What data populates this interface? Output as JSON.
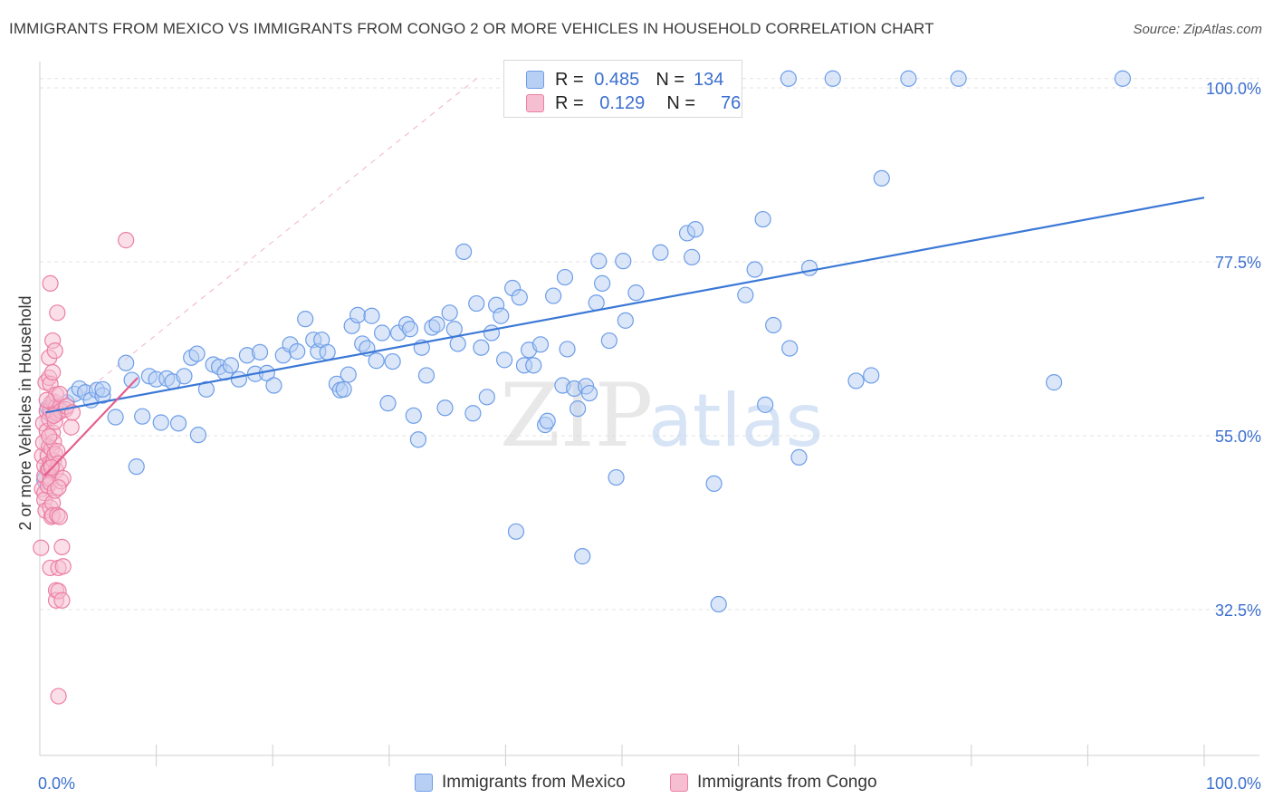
{
  "header": {
    "title": "IMMIGRANTS FROM MEXICO VS IMMIGRANTS FROM CONGO 2 OR MORE VEHICLES IN HOUSEHOLD CORRELATION CHART",
    "source_label": "Source: ZipAtlas.com"
  },
  "colors": {
    "blue": "#6d9de8",
    "blue_fill": "#b7cff3",
    "blue_line": "#3b78d6",
    "pink": "#ec7fa4",
    "pink_fill": "#f6bfd1",
    "pink_line": "#e45e8e",
    "accent_text": "#3b6fcf"
  },
  "legend": {
    "row1": {
      "r_label": "R =",
      "r_value": "0.485",
      "n_label": "N =",
      "n_value": "134"
    },
    "row2": {
      "r_label": "R =",
      "r_value": "0.129",
      "n_label": "N =",
      "n_value": "76"
    }
  },
  "bottom_legend": {
    "mexico": "Immigrants from Mexico",
    "congo": "Immigrants from Congo"
  },
  "watermark": {
    "zip": "ZIP",
    "atlas": "atlas"
  },
  "chart_data": {
    "type": "scatter",
    "title": "IMMIGRANTS FROM MEXICO VS IMMIGRANTS FROM CONGO 2 OR MORE VEHICLES IN HOUSEHOLD CORRELATION CHART",
    "xlabel": "",
    "ylabel": "2 or more Vehicles in Household",
    "xlim": [
      0,
      100
    ],
    "ylim": [
      15,
      102
    ],
    "x_tick_labels": [
      "0.0%",
      "100.0%"
    ],
    "y_ticks": [
      32.5,
      55.0,
      77.5,
      100.0
    ],
    "y_tick_labels": [
      "32.5%",
      "55.0%",
      "77.5%",
      "100.0%"
    ],
    "grid": true,
    "legend_position": "top-center",
    "series": [
      {
        "name": "Immigrants from Mexico",
        "R": 0.485,
        "N": 134,
        "trend": {
          "x": [
            0.5,
            100
          ],
          "y": [
            58.0,
            85.8
          ]
        },
        "points": [
          [
            0.6,
            49.3
          ],
          [
            0.7,
            58.6
          ],
          [
            0.9,
            57.8
          ],
          [
            1.2,
            58.5
          ],
          [
            1.4,
            58.2
          ],
          [
            1.6,
            58.8
          ],
          [
            2.3,
            59.3
          ],
          [
            3.0,
            60.4
          ],
          [
            3.4,
            61.1
          ],
          [
            3.9,
            60.6
          ],
          [
            4.4,
            59.6
          ],
          [
            4.9,
            60.9
          ],
          [
            5.4,
            60.2
          ],
          [
            5.4,
            61.0
          ],
          [
            6.5,
            57.4
          ],
          [
            7.4,
            64.4
          ],
          [
            7.9,
            62.2
          ],
          [
            8.3,
            51.0
          ],
          [
            8.8,
            57.5
          ],
          [
            9.4,
            62.7
          ],
          [
            10.0,
            62.3
          ],
          [
            10.4,
            56.7
          ],
          [
            10.9,
            62.4
          ],
          [
            11.4,
            62.0
          ],
          [
            11.9,
            56.6
          ],
          [
            12.4,
            62.7
          ],
          [
            13.0,
            65.1
          ],
          [
            13.5,
            65.6
          ],
          [
            13.6,
            55.1
          ],
          [
            14.3,
            61.0
          ],
          [
            14.9,
            64.2
          ],
          [
            15.4,
            63.9
          ],
          [
            15.9,
            63.2
          ],
          [
            16.4,
            64.1
          ],
          [
            17.1,
            62.3
          ],
          [
            17.8,
            65.4
          ],
          [
            18.5,
            63.0
          ],
          [
            18.9,
            65.8
          ],
          [
            19.5,
            63.1
          ],
          [
            20.1,
            61.5
          ],
          [
            20.9,
            65.4
          ],
          [
            21.5,
            66.8
          ],
          [
            22.1,
            65.9
          ],
          [
            22.8,
            70.1
          ],
          [
            23.5,
            67.4
          ],
          [
            23.9,
            65.9
          ],
          [
            24.2,
            67.4
          ],
          [
            24.7,
            65.8
          ],
          [
            25.5,
            61.7
          ],
          [
            25.8,
            60.9
          ],
          [
            26.1,
            61.0
          ],
          [
            26.5,
            62.9
          ],
          [
            26.8,
            69.2
          ],
          [
            27.3,
            70.6
          ],
          [
            27.7,
            66.9
          ],
          [
            28.1,
            66.3
          ],
          [
            28.5,
            70.5
          ],
          [
            28.9,
            64.7
          ],
          [
            29.4,
            68.3
          ],
          [
            29.9,
            59.2
          ],
          [
            30.3,
            64.6
          ],
          [
            30.8,
            68.3
          ],
          [
            31.5,
            69.4
          ],
          [
            31.8,
            68.8
          ],
          [
            32.1,
            57.6
          ],
          [
            32.5,
            54.5
          ],
          [
            32.8,
            66.4
          ],
          [
            33.2,
            62.8
          ],
          [
            33.7,
            69.0
          ],
          [
            34.1,
            69.4
          ],
          [
            34.8,
            58.6
          ],
          [
            35.2,
            70.9
          ],
          [
            35.6,
            68.8
          ],
          [
            35.9,
            66.9
          ],
          [
            36.4,
            78.8
          ],
          [
            37.2,
            57.9
          ],
          [
            37.5,
            72.1
          ],
          [
            37.9,
            66.4
          ],
          [
            38.4,
            60.0
          ],
          [
            38.8,
            68.3
          ],
          [
            39.2,
            71.9
          ],
          [
            39.6,
            70.5
          ],
          [
            39.9,
            64.8
          ],
          [
            40.6,
            74.1
          ],
          [
            40.9,
            42.6
          ],
          [
            41.2,
            72.9
          ],
          [
            41.6,
            64.1
          ],
          [
            42.0,
            66.1
          ],
          [
            42.4,
            64.1
          ],
          [
            43.0,
            66.8
          ],
          [
            43.4,
            56.4
          ],
          [
            43.6,
            56.9
          ],
          [
            44.1,
            73.1
          ],
          [
            44.9,
            61.5
          ],
          [
            45.1,
            75.5
          ],
          [
            45.3,
            66.2
          ],
          [
            45.9,
            61.1
          ],
          [
            46.2,
            58.5
          ],
          [
            46.6,
            39.4
          ],
          [
            46.9,
            61.4
          ],
          [
            47.2,
            60.5
          ],
          [
            47.8,
            72.2
          ],
          [
            48.0,
            77.6
          ],
          [
            48.3,
            74.7
          ],
          [
            48.9,
            67.3
          ],
          [
            49.5,
            49.6
          ],
          [
            50.1,
            77.6
          ],
          [
            50.3,
            69.9
          ],
          [
            51.2,
            73.5
          ],
          [
            53.3,
            78.7
          ],
          [
            55.6,
            81.2
          ],
          [
            56.0,
            78.1
          ],
          [
            56.3,
            81.7
          ],
          [
            57.9,
            48.8
          ],
          [
            58.3,
            33.2
          ],
          [
            59.1,
            97.5
          ],
          [
            59.3,
            101.2
          ],
          [
            60.6,
            73.2
          ],
          [
            61.4,
            76.5
          ],
          [
            62.1,
            83.0
          ],
          [
            62.3,
            59.0
          ],
          [
            63.0,
            69.3
          ],
          [
            64.3,
            101.2
          ],
          [
            64.4,
            66.3
          ],
          [
            65.2,
            52.2
          ],
          [
            66.1,
            76.7
          ],
          [
            68.1,
            101.2
          ],
          [
            70.1,
            62.1
          ],
          [
            71.4,
            62.8
          ],
          [
            72.3,
            88.3
          ],
          [
            74.6,
            101.2
          ],
          [
            78.9,
            101.2
          ],
          [
            87.1,
            61.9
          ],
          [
            93.0,
            101.2
          ]
        ]
      },
      {
        "name": "Immigrants from Congo",
        "R": 0.129,
        "N": 76,
        "trend": {
          "x": [
            0.4,
            8.4
          ],
          "y": [
            49.8,
            62.5
          ]
        },
        "points": [
          [
            0.1,
            40.5
          ],
          [
            0.2,
            52.4
          ],
          [
            0.2,
            48.1
          ],
          [
            0.3,
            56.6
          ],
          [
            0.3,
            54.1
          ],
          [
            0.4,
            49.8
          ],
          [
            0.4,
            51.1
          ],
          [
            0.4,
            47.6
          ],
          [
            0.4,
            46.7
          ],
          [
            0.5,
            61.9
          ],
          [
            0.5,
            45.3
          ],
          [
            0.6,
            58.2
          ],
          [
            0.6,
            55.6
          ],
          [
            0.7,
            52.4
          ],
          [
            0.7,
            50.6
          ],
          [
            0.7,
            48.5
          ],
          [
            0.8,
            65.1
          ],
          [
            0.8,
            62.5
          ],
          [
            0.8,
            57.2
          ],
          [
            0.8,
            53.6
          ],
          [
            0.8,
            50.7
          ],
          [
            0.9,
            74.7
          ],
          [
            0.9,
            61.7
          ],
          [
            0.9,
            58.4
          ],
          [
            0.9,
            51.5
          ],
          [
            0.9,
            49.4
          ],
          [
            0.9,
            37.9
          ],
          [
            0.9,
            45.7
          ],
          [
            0.9,
            48.9
          ],
          [
            1.0,
            59.3
          ],
          [
            1.0,
            53.3
          ],
          [
            1.0,
            44.5
          ],
          [
            1.0,
            51.2
          ],
          [
            1.1,
            67.3
          ],
          [
            1.1,
            63.2
          ],
          [
            1.1,
            55.4
          ],
          [
            1.1,
            46.3
          ],
          [
            1.1,
            44.7
          ],
          [
            1.2,
            59.4
          ],
          [
            1.2,
            51.8
          ],
          [
            1.2,
            54.2
          ],
          [
            1.3,
            66.0
          ],
          [
            1.3,
            47.9
          ],
          [
            1.3,
            56.8
          ],
          [
            1.3,
            52.6
          ],
          [
            1.4,
            60.3
          ],
          [
            1.4,
            58.7
          ],
          [
            1.4,
            50.5
          ],
          [
            1.4,
            35.0
          ],
          [
            1.4,
            33.7
          ],
          [
            1.5,
            70.9
          ],
          [
            1.5,
            57.9
          ],
          [
            1.5,
            53.0
          ],
          [
            1.5,
            44.7
          ],
          [
            1.6,
            37.9
          ],
          [
            1.6,
            34.9
          ],
          [
            1.6,
            21.3
          ],
          [
            1.6,
            51.4
          ],
          [
            1.7,
            60.4
          ],
          [
            1.7,
            44.5
          ],
          [
            1.8,
            58.2
          ],
          [
            1.8,
            49.1
          ],
          [
            1.9,
            40.6
          ],
          [
            1.9,
            33.7
          ],
          [
            2.0,
            38.1
          ],
          [
            2.0,
            49.5
          ],
          [
            2.2,
            58.4
          ],
          [
            2.3,
            58.8
          ],
          [
            2.7,
            56.1
          ],
          [
            2.8,
            58.0
          ],
          [
            0.6,
            59.6
          ],
          [
            1.2,
            57.6
          ],
          [
            0.8,
            54.9
          ],
          [
            1.0,
            50.9
          ],
          [
            1.6,
            48.3
          ],
          [
            7.4,
            80.3
          ]
        ]
      }
    ]
  }
}
